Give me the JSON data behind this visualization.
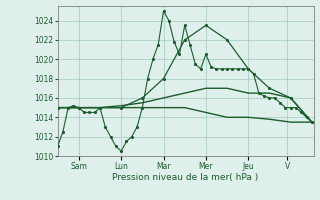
{
  "background_color": "#dff0ec",
  "grid_color": "#aacfc8",
  "line_color": "#1a5c2a",
  "xlabel": "Pression niveau de la mer( hPa )",
  "ylim": [
    1010,
    1025.5
  ],
  "yticks": [
    1010,
    1012,
    1014,
    1016,
    1018,
    1020,
    1022,
    1024
  ],
  "day_labels": [
    "Sam",
    "Lun",
    "Mar",
    "Mer",
    "Jeu",
    "V"
  ],
  "day_tick_positions": [
    24,
    72,
    120,
    168,
    216,
    260
  ],
  "xlim": [
    0,
    290
  ],
  "series1": {
    "x": [
      0,
      6,
      12,
      18,
      24,
      30,
      36,
      42,
      48,
      54,
      60,
      66,
      72,
      78,
      84,
      90,
      96,
      102,
      108,
      114,
      120,
      126,
      132,
      138,
      144,
      150,
      156,
      162,
      168,
      174,
      180,
      186,
      192,
      198,
      204,
      210,
      216,
      222,
      228,
      234,
      240,
      246,
      252,
      258,
      264,
      270,
      276,
      282,
      288
    ],
    "y": [
      1011,
      1012.5,
      1015,
      1015.2,
      1015.0,
      1014.5,
      1014.5,
      1014.5,
      1015.0,
      1013.0,
      1012.0,
      1011.0,
      1010.5,
      1011.5,
      1012.0,
      1013.0,
      1015.0,
      1018.0,
      1020.0,
      1021.5,
      1025.0,
      1024.0,
      1021.8,
      1020.5,
      1023.5,
      1021.5,
      1019.5,
      1019.0,
      1020.5,
      1019.2,
      1019.0,
      1019.0,
      1019.0,
      1019.0,
      1019.0,
      1019.0,
      1019.0,
      1018.5,
      1016.5,
      1016.2,
      1016.0,
      1016.0,
      1015.5,
      1015.0,
      1015.0,
      1015.0,
      1014.5,
      1014.0,
      1013.5
    ]
  },
  "series2": {
    "x": [
      0,
      24,
      48,
      72,
      96,
      120,
      144,
      168,
      192,
      216,
      240,
      264,
      288
    ],
    "y": [
      1015.0,
      1015.0,
      1015.0,
      1015.0,
      1016.0,
      1018.0,
      1022.0,
      1023.5,
      1022.0,
      1019.0,
      1017.0,
      1016.0,
      1013.5
    ]
  },
  "series3": {
    "x": [
      0,
      24,
      48,
      72,
      96,
      120,
      144,
      168,
      192,
      216,
      240,
      264,
      288
    ],
    "y": [
      1015.0,
      1015.0,
      1015.0,
      1015.2,
      1015.5,
      1016.0,
      1016.5,
      1017.0,
      1017.0,
      1016.5,
      1016.5,
      1016.0,
      1013.5
    ]
  },
  "series4": {
    "x": [
      0,
      24,
      48,
      72,
      96,
      120,
      144,
      168,
      192,
      216,
      240,
      264,
      288
    ],
    "y": [
      1015.0,
      1015.0,
      1015.0,
      1015.0,
      1015.0,
      1015.0,
      1015.0,
      1014.5,
      1014.0,
      1014.0,
      1013.8,
      1013.5,
      1013.5
    ]
  }
}
